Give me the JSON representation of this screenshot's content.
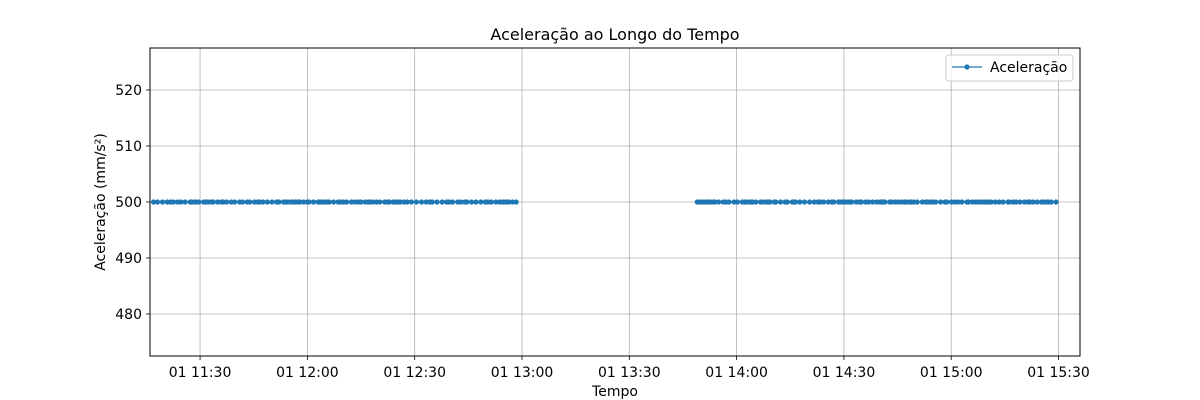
{
  "chart_data": {
    "type": "line",
    "title": "Aceleração ao Longo do Tempo",
    "xlabel": "Tempo",
    "ylabel": "Aceleração (mm/s²)",
    "x_range": [
      "11:16",
      "15:36"
    ],
    "ylim": [
      472.5,
      527.5
    ],
    "x_ticks": [
      {
        "time": "11:30",
        "label": "01 11:30"
      },
      {
        "time": "12:00",
        "label": "01 12:00"
      },
      {
        "time": "12:30",
        "label": "01 12:30"
      },
      {
        "time": "13:00",
        "label": "01 13:00"
      },
      {
        "time": "13:30",
        "label": "01 13:30"
      },
      {
        "time": "14:00",
        "label": "01 14:00"
      },
      {
        "time": "14:30",
        "label": "01 14:30"
      },
      {
        "time": "15:00",
        "label": "01 15:00"
      },
      {
        "time": "15:30",
        "label": "01 15:30"
      }
    ],
    "y_ticks": [
      480,
      490,
      500,
      510,
      520
    ],
    "grid": true,
    "legend_position": "top-right",
    "series": [
      {
        "name": "Aceleração",
        "color": "#1f77b4",
        "segments": [
          {
            "start": "11:17",
            "end": "12:59",
            "value": 500
          },
          {
            "start": "13:49",
            "end": "15:30",
            "value": 500
          }
        ]
      }
    ]
  }
}
